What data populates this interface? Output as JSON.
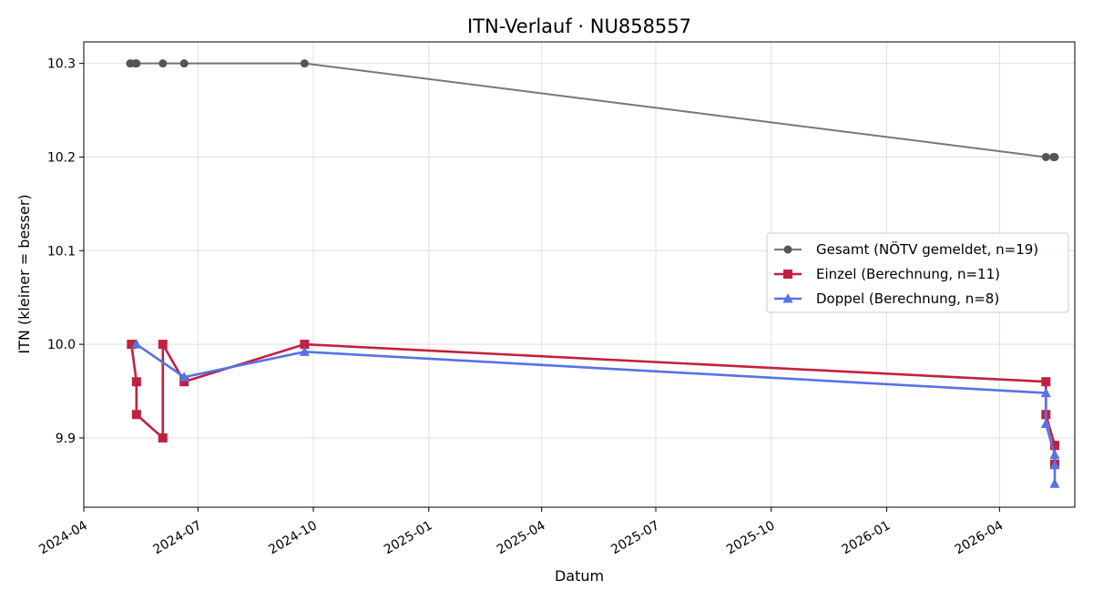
{
  "chart_data": {
    "type": "line",
    "title": "ITN-Verlauf · NU858557",
    "xlabel": "Datum",
    "ylabel": "ITN  (kleiner = besser)",
    "xlim": [
      "2024-04-01",
      "2026-05-31"
    ],
    "ylim": [
      9.826,
      10.323
    ],
    "x_ticks": [
      "2024-04",
      "2024-07",
      "2024-10",
      "2025-01",
      "2025-04",
      "2025-07",
      "2025-10",
      "2026-01",
      "2026-04"
    ],
    "y_ticks": [
      9.9,
      10.0,
      10.1,
      10.2,
      10.3
    ],
    "grid": true,
    "legend_position": "center-right",
    "series": [
      {
        "name": "Gesamt (NÖTV gemeldet, n=19)",
        "color": "#555555",
        "marker": "circle",
        "points": [
          {
            "x": "2024-05-08",
            "y": 10.3
          },
          {
            "x": "2024-05-12",
            "y": 10.3
          },
          {
            "x": "2024-05-13",
            "y": 10.3
          },
          {
            "x": "2024-06-03",
            "y": 10.3
          },
          {
            "x": "2024-06-20",
            "y": 10.3
          },
          {
            "x": "2024-09-24",
            "y": 10.3
          },
          {
            "x": "2026-05-08",
            "y": 10.2
          },
          {
            "x": "2026-05-14",
            "y": 10.2
          },
          {
            "x": "2026-05-15",
            "y": 10.2
          }
        ]
      },
      {
        "name": "Einzel (Berechnung, n=11)",
        "color": "#c3203e",
        "marker": "square",
        "points": [
          {
            "x": "2024-05-09",
            "y": 10.0
          },
          {
            "x": "2024-05-13",
            "y": 9.96
          },
          {
            "x": "2024-05-13",
            "y": 9.925
          },
          {
            "x": "2024-06-03",
            "y": 9.9
          },
          {
            "x": "2024-06-03",
            "y": 10.0
          },
          {
            "x": "2024-06-20",
            "y": 9.96
          },
          {
            "x": "2024-09-24",
            "y": 10.0
          },
          {
            "x": "2026-05-08",
            "y": 9.96
          },
          {
            "x": "2026-05-08",
            "y": 9.925
          },
          {
            "x": "2026-05-15",
            "y": 9.892
          },
          {
            "x": "2026-05-15",
            "y": 9.872
          }
        ]
      },
      {
        "name": "Doppel (Berechnung, n=8)",
        "color": "#5672e6",
        "marker": "triangle",
        "points": [
          {
            "x": "2024-05-13",
            "y": 10.0
          },
          {
            "x": "2024-06-20",
            "y": 9.965
          },
          {
            "x": "2024-09-24",
            "y": 9.992
          },
          {
            "x": "2026-05-08",
            "y": 9.948
          },
          {
            "x": "2026-05-08",
            "y": 9.915
          },
          {
            "x": "2026-05-15",
            "y": 9.882
          },
          {
            "x": "2026-05-15",
            "y": 9.871
          },
          {
            "x": "2026-05-15",
            "y": 9.851
          }
        ]
      }
    ]
  }
}
